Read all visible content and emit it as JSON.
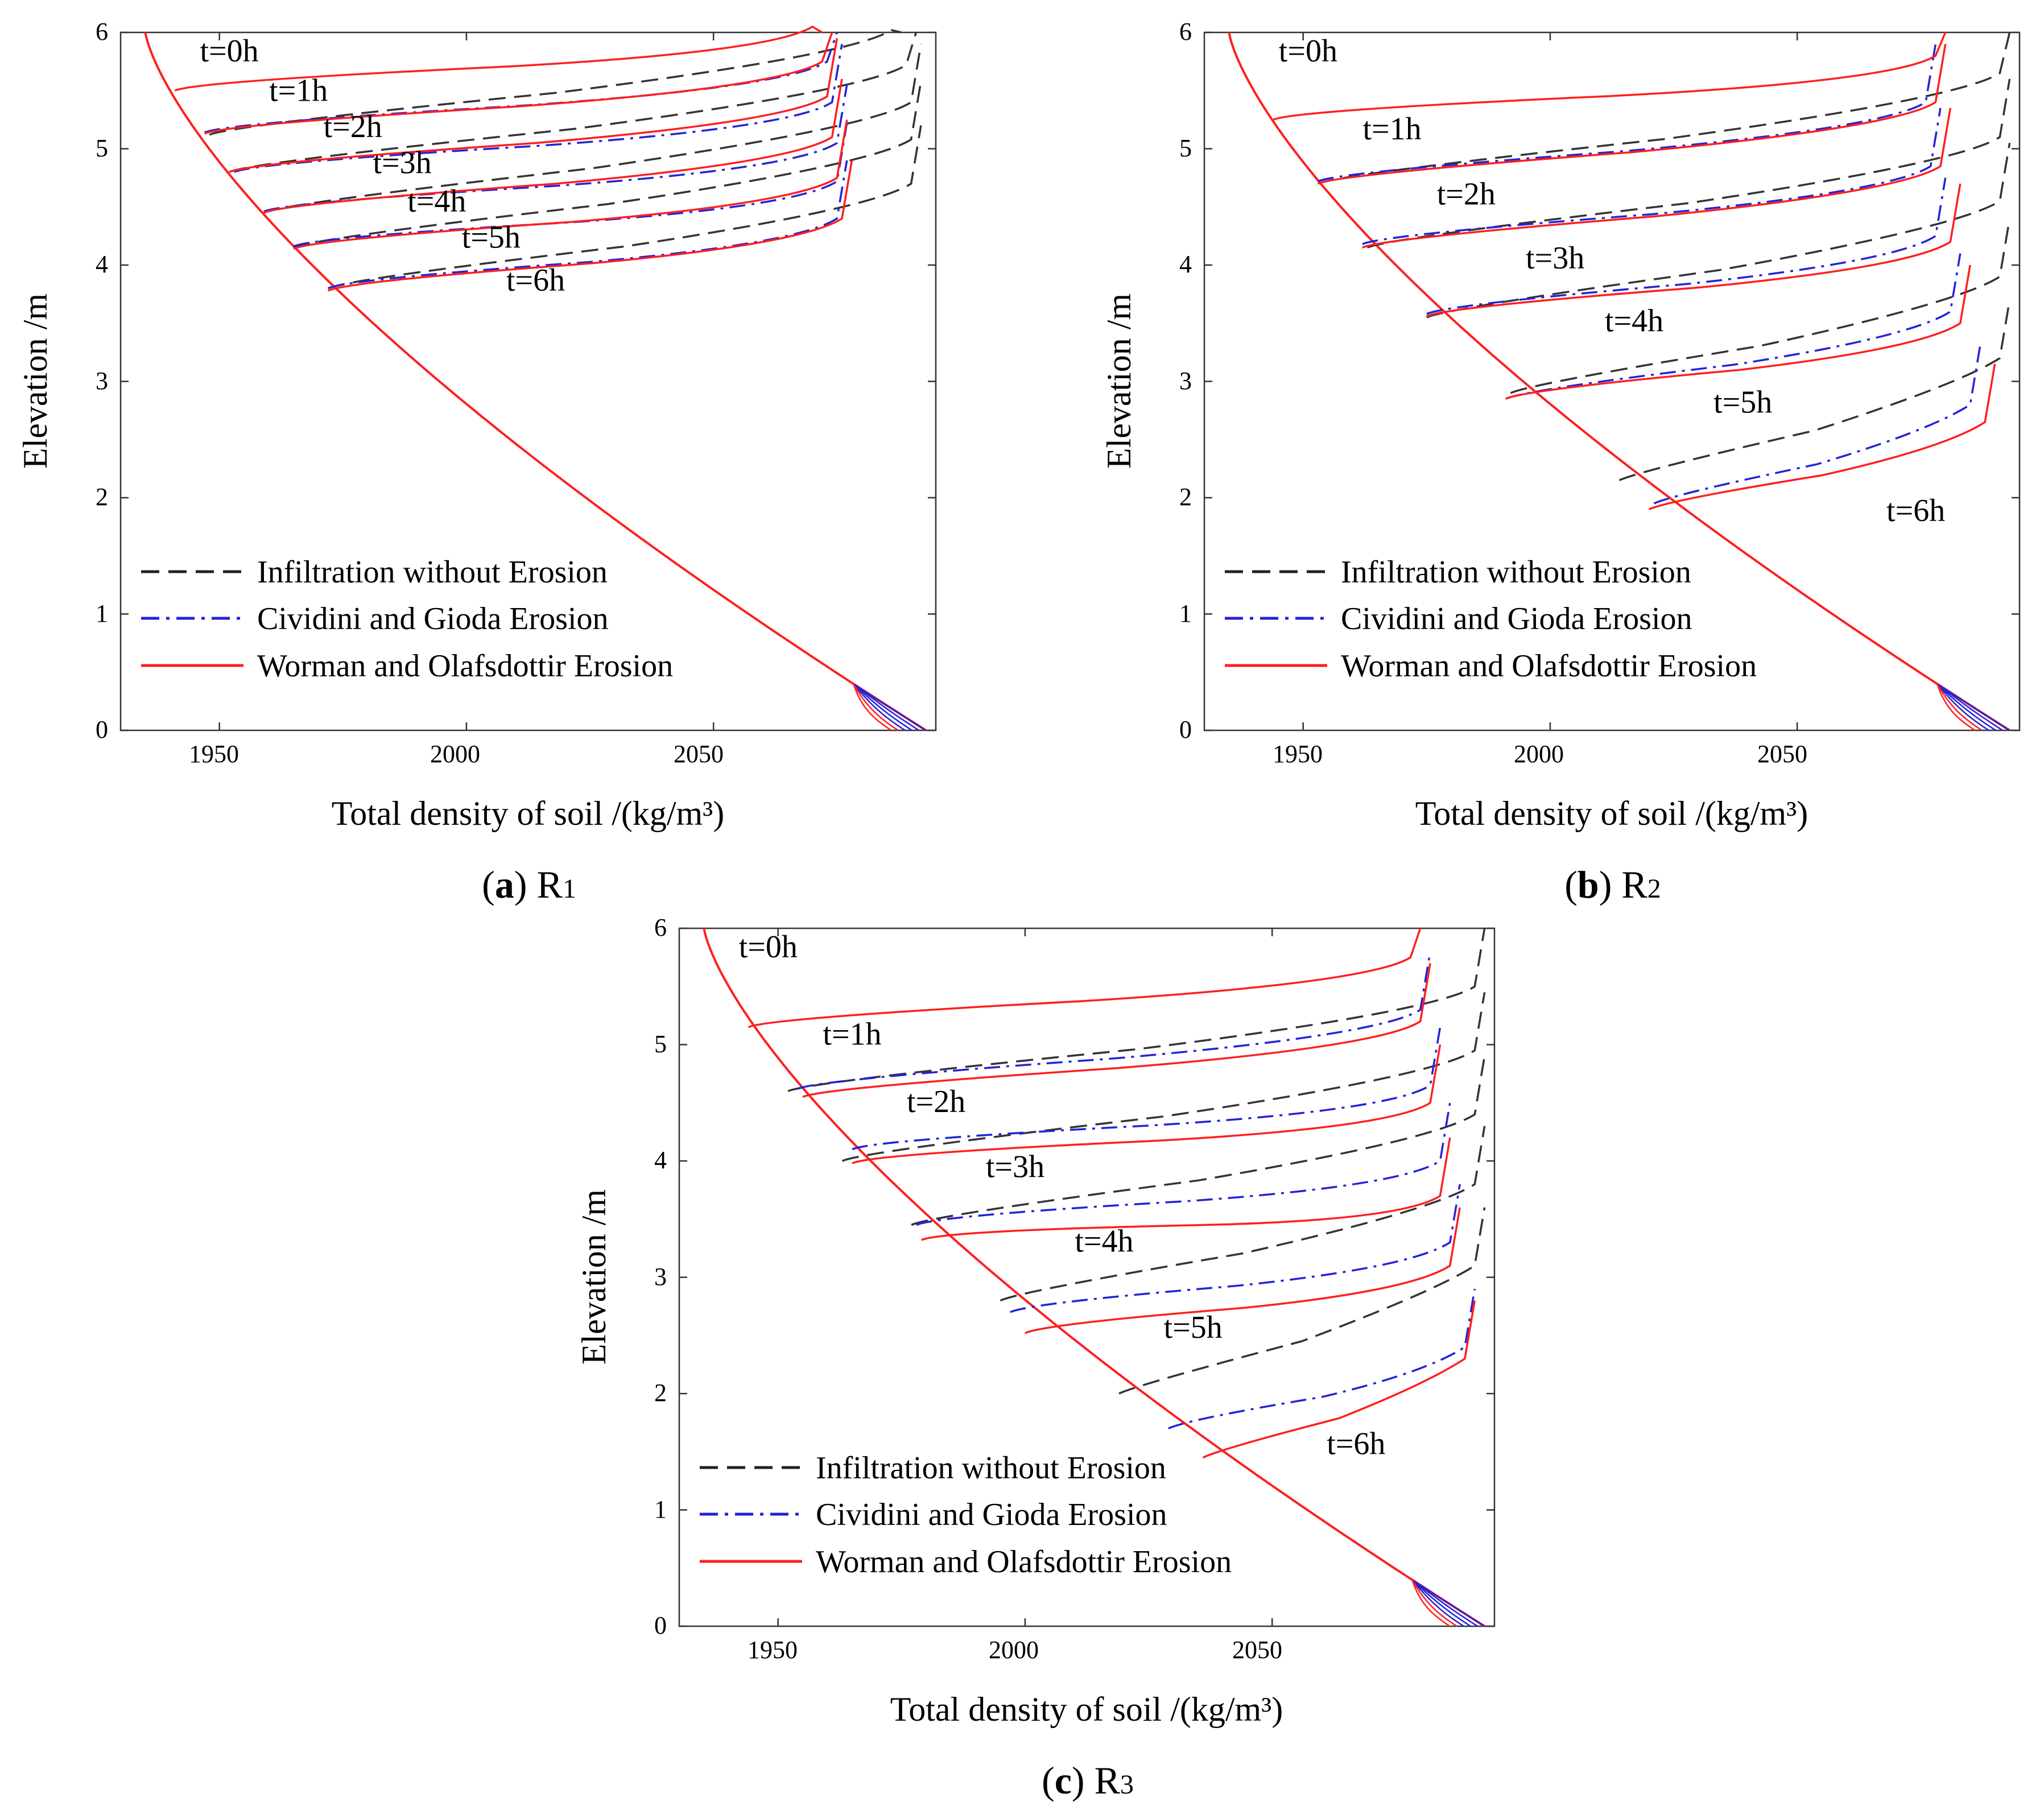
{
  "chart_data": [
    {
      "id": "a",
      "type": "line",
      "caption": {
        "letter": "a",
        "region": "R",
        "subscript": "1"
      },
      "xlabel": "Total density of soil /(kg/m³)",
      "ylabel": "Elevation /m",
      "xlim": [
        1930,
        2095
      ],
      "ylim": [
        0,
        6
      ],
      "xticks": [
        "1950",
        "2000",
        "2050"
      ],
      "yticks": [
        "0",
        "1",
        "2",
        "3",
        "4",
        "5",
        "6"
      ],
      "legend": {
        "placement": "lower-left",
        "entries": [
          "Infiltration without Erosion",
          "Cividini and Gioda  Erosion",
          "Worman and Olafsdottir Erosion"
        ]
      },
      "time_labels": [
        {
          "text": "t=0h",
          "x": 1952,
          "y": 5.75
        },
        {
          "text": "t=1h",
          "x": 1966,
          "y": 5.41
        },
        {
          "text": "t=2h",
          "x": 1977,
          "y": 5.1
        },
        {
          "text": "t=3h",
          "x": 1987,
          "y": 4.79
        },
        {
          "text": "t=4h",
          "x": 1994,
          "y": 4.46
        },
        {
          "text": "t=5h",
          "x": 2005,
          "y": 4.15
        },
        {
          "text": "t=6h",
          "x": 2014,
          "y": 3.78
        }
      ],
      "initial_profile": {
        "density_at_top": 1935,
        "density_at_base": 2093,
        "top": 6.0
      },
      "wetting_fronts": {
        "Infiltration without Erosion": [
          {
            "t": "t=1h",
            "x_front": 1948,
            "y_front": 5.12,
            "y_plateau": 5.92,
            "x_plateau": 2088
          },
          {
            "t": "t=2h",
            "x_front": 1952,
            "y_front": 4.8,
            "y_plateau": 5.62,
            "x_plateau": 2091
          },
          {
            "t": "t=3h",
            "x_front": 1959,
            "y_front": 4.45,
            "y_plateau": 5.3,
            "x_plateau": 2092
          },
          {
            "t": "t=4h",
            "x_front": 1965,
            "y_front": 4.15,
            "y_plateau": 4.98,
            "x_plateau": 2092
          },
          {
            "t": "t=5h",
            "x_front": 1972,
            "y_front": 3.8,
            "y_plateau": 4.6,
            "x_plateau": 2092
          }
        ],
        "Cividini and Gioda  Erosion": [
          {
            "t": "t=1h",
            "x_front": 1947,
            "y_front": 5.14,
            "y_plateau": 5.65,
            "x_plateau": 2075
          },
          {
            "t": "t=2h",
            "x_front": 1953,
            "y_front": 4.8,
            "y_plateau": 5.3,
            "x_plateau": 2076
          },
          {
            "t": "t=3h",
            "x_front": 1959,
            "y_front": 4.46,
            "y_plateau": 4.95,
            "x_plateau": 2077
          },
          {
            "t": "t=4h",
            "x_front": 1965,
            "y_front": 4.16,
            "y_plateau": 4.62,
            "x_plateau": 2077
          },
          {
            "t": "t=5h",
            "x_front": 1972,
            "y_front": 3.8,
            "y_plateau": 4.3,
            "x_plateau": 2077
          }
        ],
        "Worman and Olafsdottir Erosion": [
          {
            "t": "t=0h",
            "x_front": 1941,
            "y_front": 5.5,
            "y_plateau": 5.95,
            "x_plateau": 2072
          },
          {
            "t": "t=1h",
            "x_front": 1947,
            "y_front": 5.13,
            "y_plateau": 5.65,
            "x_plateau": 2074
          },
          {
            "t": "t=2h",
            "x_front": 1952,
            "y_front": 4.8,
            "y_plateau": 5.35,
            "x_plateau": 2075
          },
          {
            "t": "t=3h",
            "x_front": 1959,
            "y_front": 4.45,
            "y_plateau": 5.0,
            "x_plateau": 2076
          },
          {
            "t": "t=4h",
            "x_front": 1965,
            "y_front": 4.14,
            "y_plateau": 4.65,
            "x_plateau": 2077
          },
          {
            "t": "t=5h",
            "x_front": 1972,
            "y_front": 3.78,
            "y_plateau": 4.3,
            "x_plateau": 2078
          }
        ]
      }
    },
    {
      "id": "b",
      "type": "line",
      "caption": {
        "letter": "b",
        "region": "R",
        "subscript": "2"
      },
      "xlabel": "Total density of soil /(kg/m³)",
      "ylabel": "Elevation /m",
      "xlim": [
        1930,
        2095
      ],
      "ylim": [
        0,
        6
      ],
      "xticks": [
        "1950",
        "2000",
        "2050"
      ],
      "yticks": [
        "0",
        "1",
        "2",
        "3",
        "4",
        "5",
        "6"
      ],
      "legend": {
        "placement": "lower-left",
        "entries": [
          "Infiltration without Erosion",
          "Cividini and Gioda  Erosion",
          "Worman and Olafsdottir Erosion"
        ]
      },
      "time_labels": [
        {
          "text": "t=0h",
          "x": 1951,
          "y": 5.75
        },
        {
          "text": "t=1h",
          "x": 1968,
          "y": 5.08
        },
        {
          "text": "t=2h",
          "x": 1983,
          "y": 4.52
        },
        {
          "text": "t=3h",
          "x": 2001,
          "y": 3.97
        },
        {
          "text": "t=4h",
          "x": 2017,
          "y": 3.43
        },
        {
          "text": "t=5h",
          "x": 2039,
          "y": 2.73
        },
        {
          "text": "t=6h",
          "x": 2074,
          "y": 1.8
        }
      ],
      "initial_profile": {
        "density_at_top": 1935,
        "density_at_base": 2093,
        "top": 6.0
      },
      "wetting_fronts": {
        "Infiltration without Erosion": [
          {
            "t": "t=1h",
            "x_front": 1953,
            "y_front": 4.7,
            "y_plateau": 5.55,
            "x_plateau": 2093
          },
          {
            "t": "t=2h",
            "x_front": 1963,
            "y_front": 4.15,
            "y_plateau": 5.0,
            "x_plateau": 2093
          },
          {
            "t": "t=3h",
            "x_front": 1975,
            "y_front": 3.55,
            "y_plateau": 4.45,
            "x_plateau": 2093
          },
          {
            "t": "t=4h",
            "x_front": 1992,
            "y_front": 2.9,
            "y_plateau": 3.8,
            "x_plateau": 2093
          },
          {
            "t": "t=5h",
            "x_front": 2014,
            "y_front": 2.15,
            "y_plateau": 3.1,
            "x_plateau": 2093
          }
        ],
        "Cividini and Gioda  Erosion": [
          {
            "t": "t=1h",
            "x_front": 1953,
            "y_front": 4.72,
            "y_plateau": 5.3,
            "x_plateau": 2078
          },
          {
            "t": "t=2h",
            "x_front": 1962,
            "y_front": 4.18,
            "y_plateau": 4.75,
            "x_plateau": 2079
          },
          {
            "t": "t=3h",
            "x_front": 1975,
            "y_front": 3.58,
            "y_plateau": 4.15,
            "x_plateau": 2080
          },
          {
            "t": "t=4h",
            "x_front": 1991,
            "y_front": 2.85,
            "y_plateau": 3.5,
            "x_plateau": 2083
          },
          {
            "t": "t=5h",
            "x_front": 2021,
            "y_front": 1.95,
            "y_plateau": 2.7,
            "x_plateau": 2087
          }
        ],
        "Worman and Olafsdottir Erosion": [
          {
            "t": "t=0h",
            "x_front": 1944,
            "y_front": 5.25,
            "y_plateau": 5.7,
            "x_plateau": 2080
          },
          {
            "t": "t=1h",
            "x_front": 1953,
            "y_front": 4.7,
            "y_plateau": 5.3,
            "x_plateau": 2080
          },
          {
            "t": "t=2h",
            "x_front": 1962,
            "y_front": 4.15,
            "y_plateau": 4.75,
            "x_plateau": 2081
          },
          {
            "t": "t=3h",
            "x_front": 1975,
            "y_front": 3.56,
            "y_plateau": 4.1,
            "x_plateau": 2083
          },
          {
            "t": "t=4h",
            "x_front": 1991,
            "y_front": 2.85,
            "y_plateau": 3.4,
            "x_plateau": 2085
          },
          {
            "t": "t=5h",
            "x_front": 2020,
            "y_front": 1.9,
            "y_plateau": 2.55,
            "x_plateau": 2090
          }
        ]
      }
    },
    {
      "id": "c",
      "type": "line",
      "caption": {
        "letter": "c",
        "region": "R",
        "subscript": "3"
      },
      "xlabel": "Total density of soil /(kg/m³)",
      "ylabel": "Elevation /m",
      "xlim": [
        1930,
        2095
      ],
      "ylim": [
        0,
        6
      ],
      "xticks": [
        "1950",
        "2000",
        "2050"
      ],
      "yticks": [
        "0",
        "1",
        "2",
        "3",
        "4",
        "5",
        "6"
      ],
      "legend": {
        "placement": "lower-left",
        "entries": [
          "Infiltration without Erosion",
          "Cividini and Gioda  Erosion",
          "Worman and Olafsdottir Erosion"
        ]
      },
      "time_labels": [
        {
          "text": "t=0h",
          "x": 1948,
          "y": 5.75
        },
        {
          "text": "t=1h",
          "x": 1965,
          "y": 5.0
        },
        {
          "text": "t=2h",
          "x": 1982,
          "y": 4.42
        },
        {
          "text": "t=3h",
          "x": 1998,
          "y": 3.86
        },
        {
          "text": "t=4h",
          "x": 2016,
          "y": 3.22
        },
        {
          "text": "t=5h",
          "x": 2034,
          "y": 2.48
        },
        {
          "text": "t=6h",
          "x": 2067,
          "y": 1.48
        }
      ],
      "initial_profile": {
        "density_at_top": 1935,
        "density_at_base": 2093,
        "top": 6.0
      },
      "wetting_fronts": {
        "Infiltration without Erosion": [
          {
            "t": "t=1h",
            "x_front": 1952,
            "y_front": 4.6,
            "y_plateau": 5.4,
            "x_plateau": 2093
          },
          {
            "t": "t=2h",
            "x_front": 1963,
            "y_front": 4.0,
            "y_plateau": 4.85,
            "x_plateau": 2093
          },
          {
            "t": "t=3h",
            "x_front": 1977,
            "y_front": 3.45,
            "y_plateau": 4.3,
            "x_plateau": 2093
          },
          {
            "t": "t=4h",
            "x_front": 1995,
            "y_front": 2.8,
            "y_plateau": 3.7,
            "x_plateau": 2093
          },
          {
            "t": "t=5h",
            "x_front": 2019,
            "y_front": 2.0,
            "y_plateau": 3.0,
            "x_plateau": 2093
          }
        ],
        "Cividini and Gioda  Erosion": [
          {
            "t": "t=1h",
            "x_front": 1954,
            "y_front": 4.62,
            "y_plateau": 5.2,
            "x_plateau": 2082
          },
          {
            "t": "t=2h",
            "x_front": 1965,
            "y_front": 4.1,
            "y_plateau": 4.55,
            "x_plateau": 2084
          },
          {
            "t": "t=3h",
            "x_front": 1978,
            "y_front": 3.45,
            "y_plateau": 3.9,
            "x_plateau": 2086
          },
          {
            "t": "t=4h",
            "x_front": 1997,
            "y_front": 2.7,
            "y_plateau": 3.2,
            "x_plateau": 2088
          },
          {
            "t": "t=5h",
            "x_front": 2029,
            "y_front": 1.7,
            "y_plateau": 2.3,
            "x_plateau": 2091
          }
        ],
        "Worman and Olafsdottir Erosion": [
          {
            "t": "t=0h",
            "x_front": 1944,
            "y_front": 5.15,
            "y_plateau": 5.65,
            "x_plateau": 2080
          },
          {
            "t": "t=1h",
            "x_front": 1955,
            "y_front": 4.55,
            "y_plateau": 5.1,
            "x_plateau": 2082
          },
          {
            "t": "t=2h",
            "x_front": 1965,
            "y_front": 3.98,
            "y_plateau": 4.4,
            "x_plateau": 2084
          },
          {
            "t": "t=3h",
            "x_front": 1979,
            "y_front": 3.32,
            "y_plateau": 3.6,
            "x_plateau": 2086
          },
          {
            "t": "t=4h",
            "x_front": 2000,
            "y_front": 2.52,
            "y_plateau": 3.0,
            "x_plateau": 2088
          },
          {
            "t": "t=5h",
            "x_front": 2036,
            "y_front": 1.45,
            "y_plateau": 2.2,
            "x_plateau": 2091
          }
        ]
      }
    }
  ],
  "series_styles": [
    {
      "name": "Infiltration without Erosion",
      "color": "#333333",
      "dash": "dashed"
    },
    {
      "name": "Cividini and Gioda  Erosion",
      "color": "#2323d8",
      "dash": "dashdot"
    },
    {
      "name": "Worman and Olafsdottir Erosion",
      "color": "#ff1f1f",
      "dash": "solid"
    }
  ]
}
